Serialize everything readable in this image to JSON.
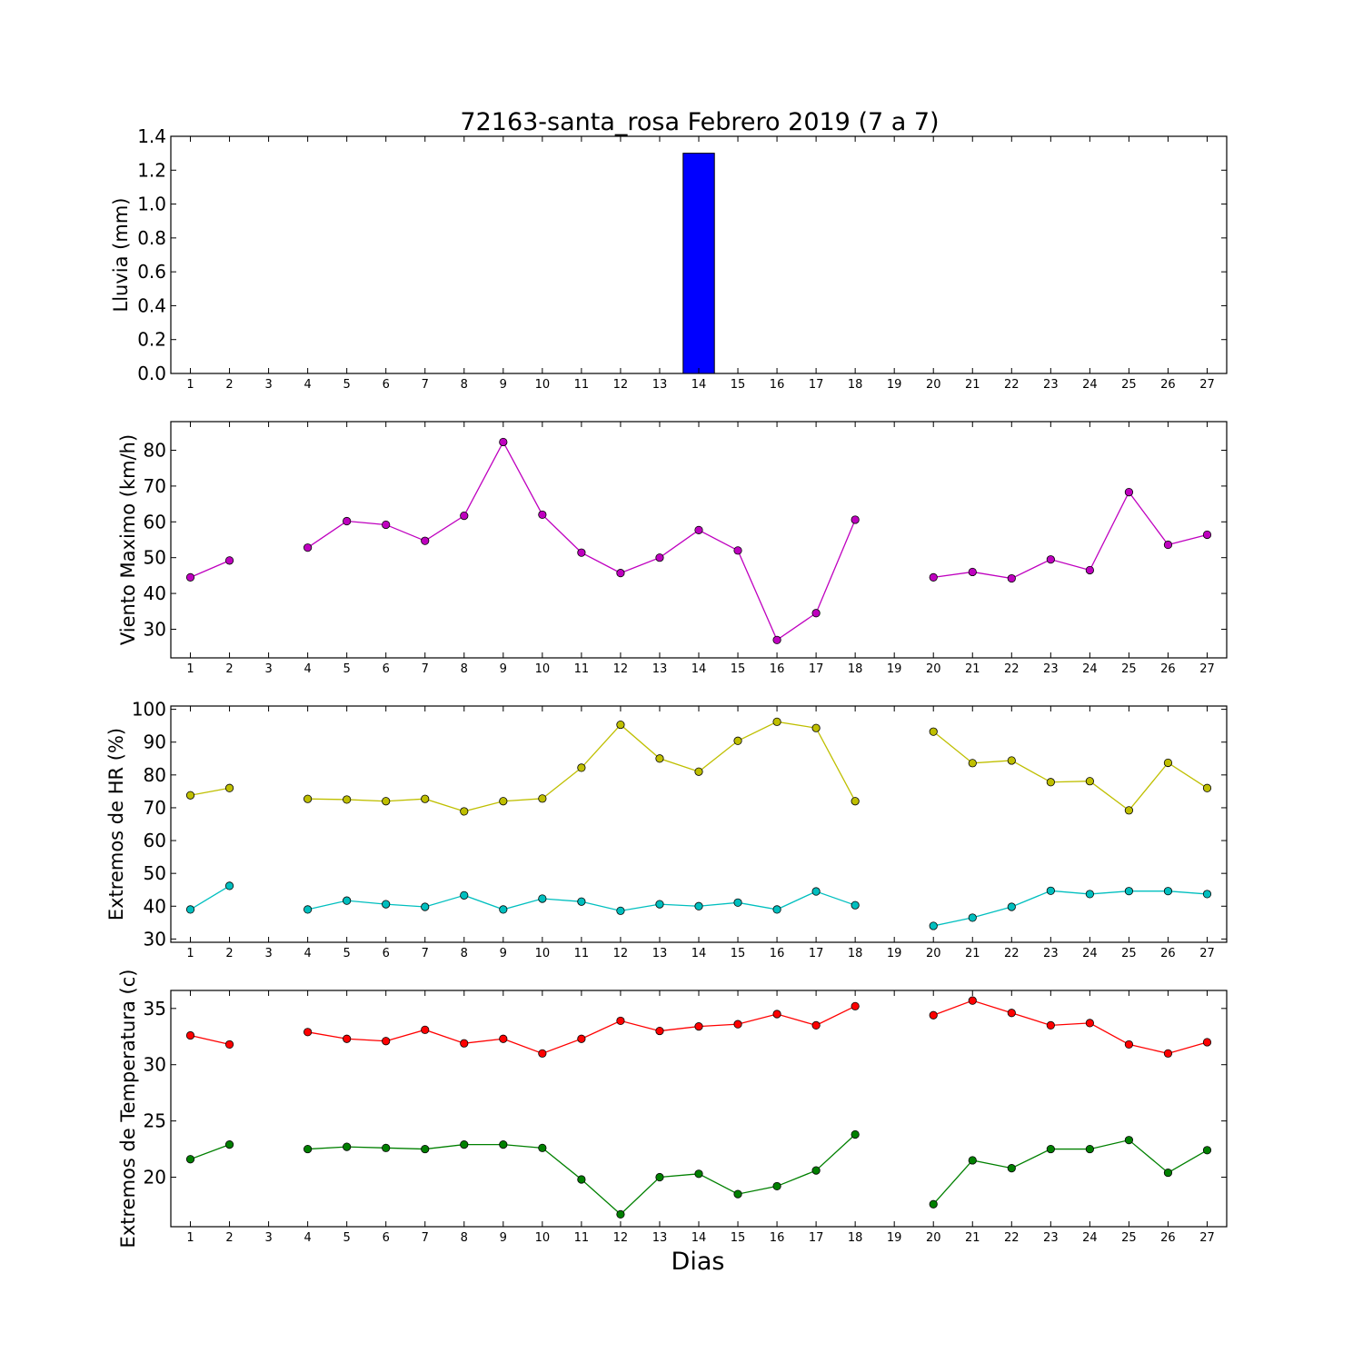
{
  "figure": {
    "title": "72163-santa_rosa Febrero 2019  (7 a 7)",
    "xlabel": "Dias"
  },
  "chart_data": [
    {
      "type": "bar",
      "ylabel": "Lluvia (mm)",
      "ylim": [
        0,
        1.4
      ],
      "yticks": [
        0.0,
        0.2,
        0.4,
        0.6,
        0.8,
        1.0,
        1.2,
        1.4
      ],
      "ytick_labels": [
        "0.0",
        "0.2",
        "0.4",
        "0.6",
        "0.8",
        "1.0",
        "1.2",
        "1.4"
      ],
      "xlim": [
        0.5,
        27.5
      ],
      "categories": [
        1,
        2,
        3,
        4,
        5,
        6,
        7,
        8,
        9,
        10,
        11,
        12,
        13,
        14,
        15,
        16,
        17,
        18,
        19,
        20,
        21,
        22,
        23,
        24,
        25,
        26,
        27
      ],
      "series": [
        {
          "color": "#0000ff",
          "values": [
            0,
            0,
            null,
            0,
            0,
            0,
            0,
            0,
            0,
            0,
            0,
            0,
            0,
            1.3,
            0,
            0,
            0,
            0,
            null,
            0,
            0,
            0,
            0,
            0,
            0,
            0,
            0
          ]
        }
      ],
      "grid": false
    },
    {
      "type": "line",
      "ylabel": "Viento Maximo (km/h)",
      "ylim": [
        22,
        88
      ],
      "yticks": [
        30,
        40,
        50,
        60,
        70,
        80
      ],
      "ytick_labels": [
        "30",
        "40",
        "50",
        "60",
        "70",
        "80"
      ],
      "xlim": [
        0.5,
        27.5
      ],
      "categories": [
        1,
        2,
        3,
        4,
        5,
        6,
        7,
        8,
        9,
        10,
        11,
        12,
        13,
        14,
        15,
        16,
        17,
        18,
        19,
        20,
        21,
        22,
        23,
        24,
        25,
        26,
        27
      ],
      "series": [
        {
          "color": "#bf00bf",
          "values": [
            44.5,
            49.2,
            null,
            52.8,
            60.2,
            59.2,
            54.7,
            61.7,
            82.3,
            62.0,
            51.4,
            45.7,
            50.0,
            57.7,
            52.0,
            27.0,
            34.5,
            60.6,
            null,
            44.5,
            46.0,
            44.2,
            49.5,
            46.5,
            68.3,
            53.6,
            56.4
          ]
        }
      ],
      "grid": false
    },
    {
      "type": "line",
      "ylabel": "Extremos de HR (%)",
      "ylim": [
        29,
        101
      ],
      "yticks": [
        30,
        40,
        50,
        60,
        70,
        80,
        90,
        100
      ],
      "ytick_labels": [
        "30",
        "40",
        "50",
        "60",
        "70",
        "80",
        "90",
        "100"
      ],
      "xlim": [
        0.5,
        27.5
      ],
      "categories": [
        1,
        2,
        3,
        4,
        5,
        6,
        7,
        8,
        9,
        10,
        11,
        12,
        13,
        14,
        15,
        16,
        17,
        18,
        19,
        20,
        21,
        22,
        23,
        24,
        25,
        26,
        27
      ],
      "series": [
        {
          "color": "#bfbf00",
          "values": [
            73.8,
            76.0,
            null,
            72.7,
            72.5,
            72.0,
            72.7,
            68.9,
            72.0,
            72.8,
            82.2,
            95.3,
            85.0,
            81.0,
            90.4,
            96.2,
            94.3,
            72.0,
            null,
            93.2,
            83.6,
            84.4,
            77.8,
            78.1,
            69.2,
            83.7,
            76.0
          ]
        },
        {
          "color": "#00bfbf",
          "values": [
            39.0,
            46.2,
            null,
            39.0,
            41.7,
            40.6,
            39.8,
            43.3,
            39.0,
            42.3,
            41.4,
            38.6,
            40.6,
            40.0,
            41.1,
            39.0,
            44.5,
            40.3,
            null,
            34.0,
            36.5,
            39.8,
            44.7,
            43.7,
            44.6,
            44.6,
            43.7
          ]
        }
      ],
      "grid": false
    },
    {
      "type": "line",
      "ylabel": "Extremos de Temperatura (c)",
      "ylim": [
        15.6,
        36.6
      ],
      "yticks": [
        20,
        25,
        30,
        35
      ],
      "ytick_labels": [
        "20",
        "25",
        "30",
        "35"
      ],
      "xlim": [
        0.5,
        27.5
      ],
      "categories": [
        1,
        2,
        3,
        4,
        5,
        6,
        7,
        8,
        9,
        10,
        11,
        12,
        13,
        14,
        15,
        16,
        17,
        18,
        19,
        20,
        21,
        22,
        23,
        24,
        25,
        26,
        27
      ],
      "series": [
        {
          "color": "#ff0000",
          "values": [
            32.6,
            31.8,
            null,
            32.9,
            32.3,
            32.1,
            33.1,
            31.9,
            32.3,
            31.0,
            32.3,
            33.9,
            33.0,
            33.4,
            33.6,
            34.5,
            33.5,
            35.2,
            null,
            34.4,
            35.7,
            34.6,
            33.5,
            33.7,
            31.8,
            31.0,
            32.0
          ]
        },
        {
          "color": "#008000",
          "values": [
            21.6,
            22.9,
            null,
            22.5,
            22.7,
            22.6,
            22.5,
            22.9,
            22.9,
            22.6,
            19.8,
            16.7,
            20.0,
            20.3,
            18.5,
            19.2,
            20.6,
            23.8,
            null,
            17.6,
            21.5,
            20.8,
            22.5,
            22.5,
            23.3,
            20.4,
            22.4
          ]
        }
      ],
      "grid": false
    }
  ]
}
